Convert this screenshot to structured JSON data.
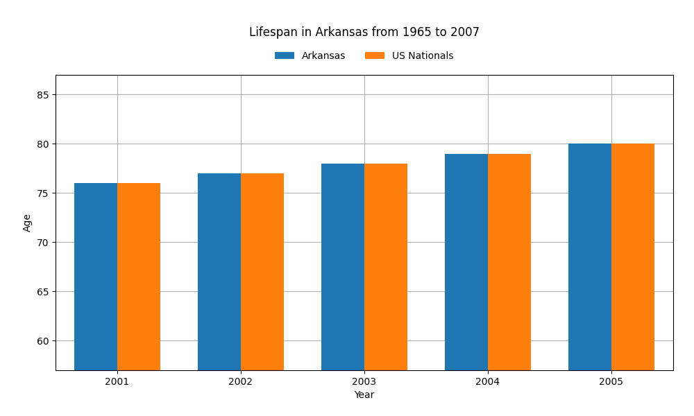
{
  "chart_data": {
    "type": "bar",
    "title": "Lifespan in Arkansas from 1965 to 2007",
    "x_label": "Year",
    "y_label": "Age",
    "categories": [
      "2001",
      "2002",
      "2003",
      "2004",
      "2005"
    ],
    "series": [
      {
        "name": "Arkansas",
        "values": [
          76,
          77,
          78,
          79,
          80
        ]
      },
      {
        "name": "US Nationals",
        "values": [
          76,
          77,
          78,
          79,
          80
        ]
      }
    ],
    "ylim": [
      57,
      87
    ],
    "yticks": [
      60,
      65,
      70,
      75,
      80,
      85
    ],
    "grid": true,
    "legend": "upper center"
  }
}
